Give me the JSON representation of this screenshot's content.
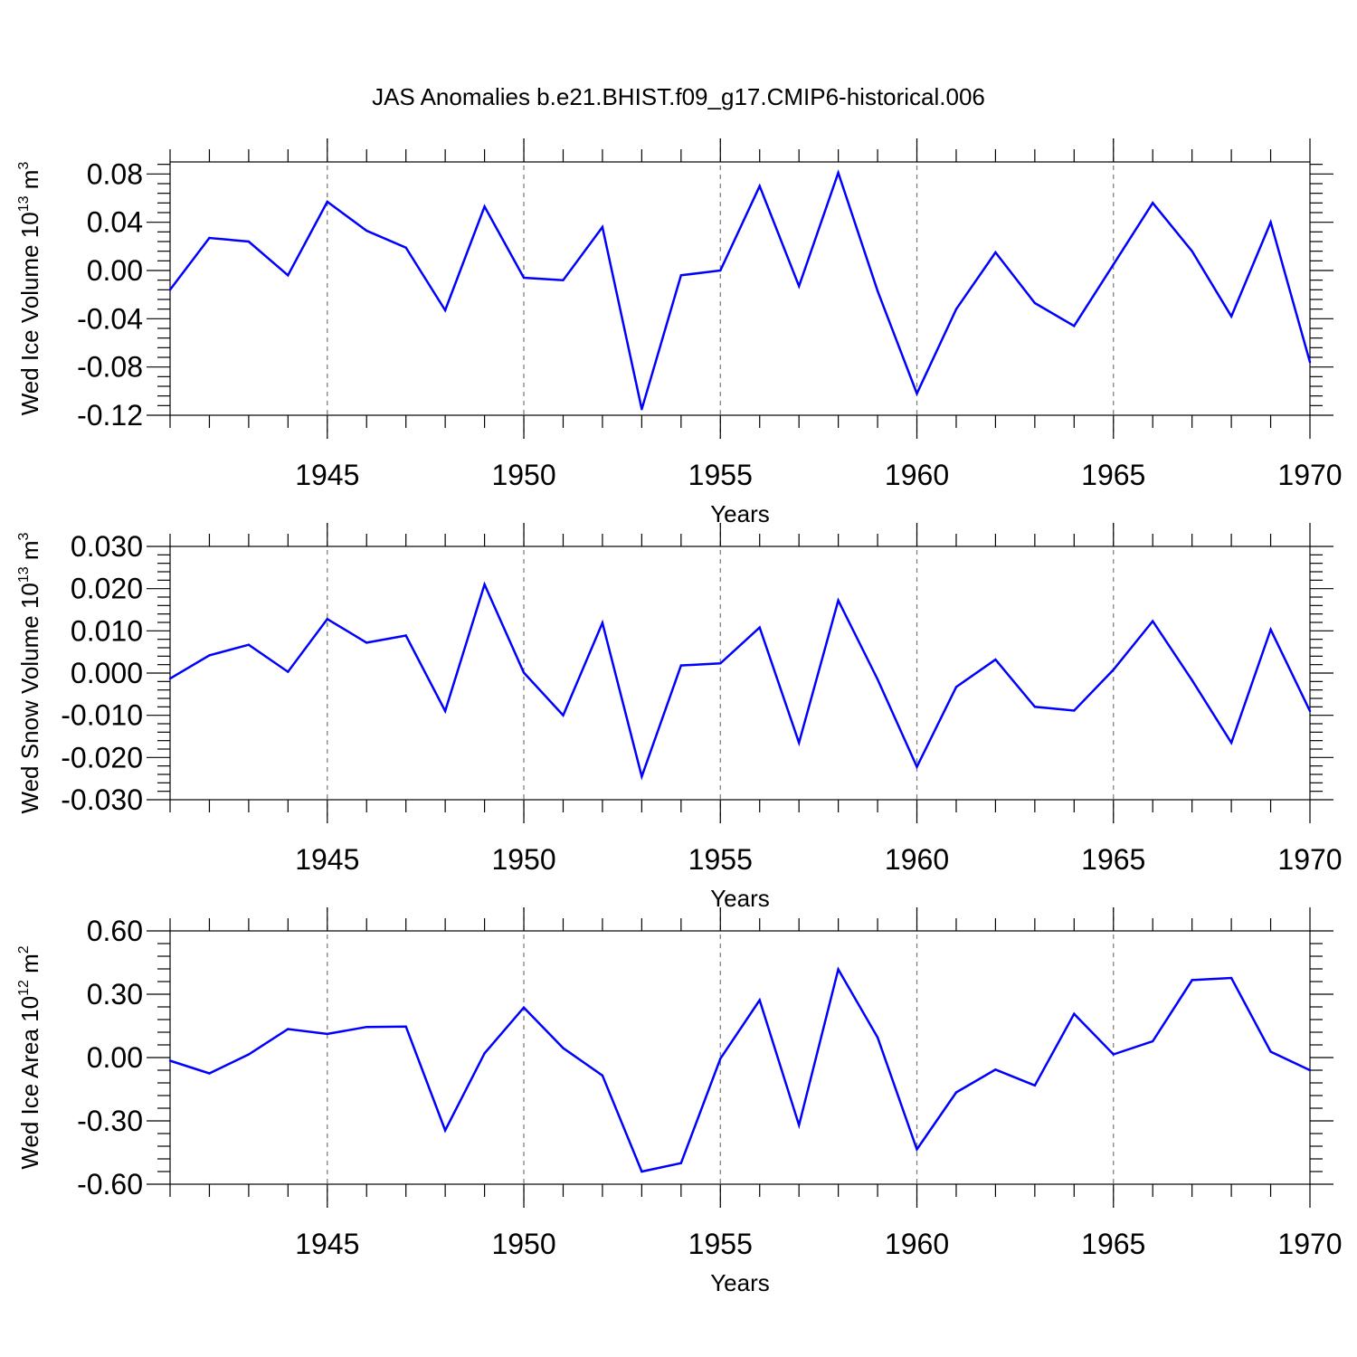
{
  "title": "JAS Anomalies b.e21.BHIST.f09_g17.CMIP6-historical.006",
  "line_color": "#0000ff",
  "chart_data": [
    {
      "type": "line",
      "title": "JAS Anomalies b.e21.BHIST.f09_g17.CMIP6-historical.006",
      "xlabel": "Years",
      "ylabel": "Wed Ice Volume 10",
      "ylabel_sup": "13",
      "ylabel_unit": " m",
      "ylabel_unit_sup": "3",
      "xlim": [
        1941,
        1970
      ],
      "ylim": [
        -0.12,
        0.09
      ],
      "yticks": [
        -0.12,
        -0.08,
        -0.04,
        0.0,
        0.04,
        0.08
      ],
      "ytick_labels": [
        "-0.12",
        "-0.08",
        "-0.04",
        "0.00",
        "0.04",
        "0.08"
      ],
      "xticks": [
        1945,
        1950,
        1955,
        1960,
        1965,
        1970
      ],
      "xtick_labels": [
        "1945",
        "1950",
        "1955",
        "1960",
        "1965",
        "1970"
      ],
      "grid_x": [
        1945,
        1950,
        1955,
        1960,
        1965
      ],
      "x": [
        1941,
        1942,
        1943,
        1944,
        1945,
        1946,
        1947,
        1948,
        1949,
        1950,
        1951,
        1952,
        1953,
        1954,
        1955,
        1956,
        1957,
        1958,
        1959,
        1960,
        1961,
        1962,
        1963,
        1964,
        1965,
        1966,
        1967,
        1968,
        1969,
        1970
      ],
      "values": [
        -0.016,
        0.027,
        0.024,
        -0.004,
        0.057,
        0.033,
        0.019,
        -0.033,
        0.053,
        -0.006,
        -0.008,
        0.036,
        -0.115,
        -0.004,
        0.0,
        0.07,
        -0.013,
        0.081,
        -0.017,
        -0.102,
        -0.032,
        0.015,
        -0.027,
        -0.046,
        0.005,
        0.056,
        0.016,
        -0.038,
        0.04,
        -0.076
      ]
    },
    {
      "type": "line",
      "xlabel": "Years",
      "ylabel": "Wed Snow Volume 10",
      "ylabel_sup": "13",
      "ylabel_unit": " m",
      "ylabel_unit_sup": "3",
      "xlim": [
        1941,
        1970
      ],
      "ylim": [
        -0.03,
        0.03
      ],
      "yticks": [
        -0.03,
        -0.02,
        -0.01,
        0.0,
        0.01,
        0.02,
        0.03
      ],
      "ytick_labels": [
        "-0.030",
        "-0.020",
        "-0.010",
        "0.000",
        "0.010",
        "0.020",
        "0.030"
      ],
      "xticks": [
        1945,
        1950,
        1955,
        1960,
        1965,
        1970
      ],
      "xtick_labels": [
        "1945",
        "1950",
        "1955",
        "1960",
        "1965",
        "1970"
      ],
      "grid_x": [
        1945,
        1950,
        1955,
        1960,
        1965
      ],
      "x": [
        1941,
        1942,
        1943,
        1944,
        1945,
        1946,
        1947,
        1948,
        1949,
        1950,
        1951,
        1952,
        1953,
        1954,
        1955,
        1956,
        1957,
        1958,
        1959,
        1960,
        1961,
        1962,
        1963,
        1964,
        1965,
        1966,
        1967,
        1968,
        1969,
        1970
      ],
      "values": [
        -0.0013,
        0.0042,
        0.0067,
        0.0003,
        0.0128,
        0.0072,
        0.0089,
        -0.009,
        0.021,
        0.0001,
        -0.01,
        0.0119,
        -0.0245,
        0.0018,
        0.0023,
        0.0108,
        -0.0165,
        0.0172,
        -0.0015,
        -0.0222,
        -0.0033,
        0.0032,
        -0.008,
        -0.0089,
        0.0008,
        0.0123,
        -0.0017,
        -0.0165,
        0.0103,
        -0.009
      ]
    },
    {
      "type": "line",
      "xlabel": "Years",
      "ylabel": "Wed Ice Area 10",
      "ylabel_sup": "12",
      "ylabel_unit": " m",
      "ylabel_unit_sup": "2",
      "xlim": [
        1941,
        1970
      ],
      "ylim": [
        -0.6,
        0.6
      ],
      "yticks": [
        -0.6,
        -0.3,
        0.0,
        0.3,
        0.6
      ],
      "ytick_labels": [
        "-0.60",
        "-0.30",
        "0.00",
        "0.30",
        "0.60"
      ],
      "xticks": [
        1945,
        1950,
        1955,
        1960,
        1965,
        1970
      ],
      "xtick_labels": [
        "1945",
        "1950",
        "1955",
        "1960",
        "1965",
        "1970"
      ],
      "grid_x": [
        1945,
        1950,
        1955,
        1960,
        1965
      ],
      "x": [
        1941,
        1942,
        1943,
        1944,
        1945,
        1946,
        1947,
        1948,
        1949,
        1950,
        1951,
        1952,
        1953,
        1954,
        1955,
        1956,
        1957,
        1958,
        1959,
        1960,
        1961,
        1962,
        1963,
        1964,
        1965,
        1966,
        1967,
        1968,
        1969,
        1970
      ],
      "values": [
        -0.015,
        -0.075,
        0.015,
        0.135,
        0.112,
        0.145,
        0.147,
        -0.345,
        0.02,
        0.237,
        0.045,
        -0.085,
        -0.54,
        -0.5,
        -0.005,
        0.272,
        -0.32,
        0.418,
        0.095,
        -0.435,
        -0.165,
        -0.057,
        -0.132,
        0.207,
        0.015,
        0.077,
        0.367,
        0.377,
        0.028,
        -0.06
      ]
    }
  ]
}
